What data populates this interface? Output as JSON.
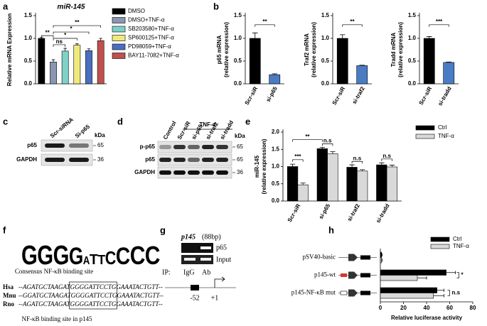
{
  "chart_data": [
    {
      "type": "bar",
      "panel": "a",
      "title": "miR-145",
      "ylabel": [
        "Relative mRNA Expression"
      ],
      "categories": [
        "DMSO",
        "DMSO+TNF-α",
        "SB203580+TNF-α",
        "SP600125+TNF-α",
        "PD98059+TNF-α",
        "BAY11-7082+TNF-α"
      ],
      "values": [
        1.0,
        0.48,
        0.72,
        0.85,
        0.73,
        0.95
      ],
      "errors": [
        0.02,
        0.05,
        0.06,
        0.03,
        0.04,
        0.05
      ],
      "colors": [
        "#000000",
        "#8a97b3",
        "#7fd1c6",
        "#f0ea7c",
        "#4a6ec0",
        "#c0504d"
      ],
      "ylim": [
        0,
        1.5
      ],
      "yticks": [
        {
          "value": 0,
          "label": "0.0"
        },
        0.5,
        {
          "value": 1,
          "label": "1.0"
        },
        1.5
      ],
      "annotations": [
        "**",
        "ns",
        "*",
        "*",
        "**"
      ],
      "legend": "right"
    },
    {
      "type": "bar",
      "panel": "b",
      "ylabel": [
        "p65 mRNA",
        "(relative expression)"
      ],
      "categories": [
        "Scr-siR",
        "si-p65"
      ],
      "values": [
        1.0,
        0.2
      ],
      "errors": [
        0.12,
        0.02
      ],
      "colors": [
        "#000000",
        "#4a7cc4"
      ],
      "ylim": [
        0,
        1.5
      ],
      "yticks": [
        {
          "value": 0,
          "label": "0.0"
        },
        0.5,
        {
          "value": 1,
          "label": "1.0"
        },
        1.5
      ],
      "annotations": [
        "**"
      ]
    },
    {
      "type": "bar",
      "ylabel": [
        "Traf2 mRNA",
        "(relative expression)"
      ],
      "categories": [
        "Scr-siR",
        "si-traf2"
      ],
      "values": [
        1.0,
        0.4
      ],
      "errors": [
        0.08,
        0.01
      ],
      "colors": [
        "#000000",
        "#4a7cc4"
      ],
      "ylim": [
        0,
        1.5
      ],
      "yticks": [
        {
          "value": 0,
          "label": "0.0"
        },
        0.5,
        {
          "value": 1,
          "label": "1.0"
        },
        1.5
      ],
      "annotations": [
        "**"
      ]
    },
    {
      "type": "bar",
      "ylabel": [
        "Tradd mRNA",
        "(relative expression)"
      ],
      "categories": [
        "Scr-siR",
        "si-tradd"
      ],
      "values": [
        1.0,
        0.47
      ],
      "errors": [
        0.04,
        0.01
      ],
      "colors": [
        "#000000",
        "#4a7cc4"
      ],
      "ylim": [
        0,
        1.5
      ],
      "yticks": [
        {
          "value": 0,
          "label": "0.0"
        },
        0.5,
        {
          "value": 1,
          "label": "1.0"
        },
        1.5
      ],
      "annotations": [
        "***"
      ]
    },
    {
      "type": "bar",
      "panel": "e",
      "ylabel": [
        "miR-145",
        "(relative expression)"
      ],
      "categories": [
        "Scr-siR",
        "si-p65",
        "si-traf2",
        "si-tradd"
      ],
      "series": [
        {
          "name": "Ctrl",
          "color": "#000000",
          "values": [
            1.0,
            1.52,
            0.98,
            1.05
          ],
          "errors": [
            0.07,
            0.04,
            0.07,
            0.06
          ]
        },
        {
          "name": "TNF-α",
          "color": "#d9d9d9",
          "values": [
            0.47,
            1.37,
            0.87,
            0.99
          ],
          "errors": [
            0.05,
            0.06,
            0.04,
            0.05
          ]
        }
      ],
      "ylim": [
        0,
        2
      ],
      "yticks": [
        {
          "value": 0,
          "label": "0.0"
        },
        0.5,
        {
          "value": 1,
          "label": "1.0"
        },
        1.5,
        {
          "value": 2,
          "label": "2.0"
        }
      ],
      "annotations": [
        "***",
        "**",
        "n.s",
        "n.s",
        "n.s"
      ],
      "legend": "top-right"
    },
    {
      "type": "barh",
      "panel": "h",
      "xlabel": "Relative luciferase activity",
      "categories": [
        "pSV40-basic",
        "p145-wt",
        "p145-NF-κB mut"
      ],
      "series": [
        {
          "name": "Ctrl",
          "color": "#000000",
          "values": [
            1,
            57,
            49
          ],
          "errors": [
            0.5,
            8,
            6
          ]
        },
        {
          "name": "TNF-α",
          "color": "#d9d9d9",
          "values": [
            1,
            32,
            46
          ],
          "errors": [
            0.5,
            8,
            9
          ]
        }
      ],
      "xlim": [
        0,
        80
      ],
      "xticks": [
        0,
        20,
        40,
        60,
        80
      ],
      "annotations": [
        "*",
        "n.s"
      ],
      "legend": "top-right"
    }
  ],
  "panel_c": {
    "panel": "c",
    "lanes": [
      "Scr-siRNA",
      "Si-p65"
    ],
    "rows": [
      "p65",
      "GAPDH"
    ],
    "unit": "kDa",
    "markers": [
      "65",
      "36"
    ]
  },
  "panel_d": {
    "panel": "d",
    "treatment": "TNF-α",
    "lanes": [
      "Control",
      "Scr-siR",
      "si-p65",
      "si-traf2",
      "si-tradd"
    ],
    "rows": [
      "p-p65",
      "p65",
      "GAPDH"
    ],
    "unit": "kDa",
    "markers": [
      "65",
      "65",
      "36"
    ]
  },
  "panel_f": {
    "panel": "f",
    "logo": [
      "G",
      "G",
      "G",
      "G",
      "A",
      "T",
      "T",
      "C",
      "C",
      "C",
      "C"
    ],
    "logo_caption": "Consensus NF-κB binding site",
    "species": [
      {
        "name": "Hsa",
        "left": "--AGATGCTAAGAT",
        "site": "GGGGATTCCTG",
        "right": "GAAATACTGTT--"
      },
      {
        "name": "Mnu",
        "left": "--GGATGCTAAGAT",
        "site": "GGGGATTCCTG",
        "right": "GAAATACTGTT--"
      },
      {
        "name": "Rno",
        "left": "--AGATGCTAAGAT",
        "site": "GGGGATTCCTG",
        "right": "GAAATACTGTT--"
      }
    ],
    "caption": "NF-κB binding site in p145"
  },
  "panel_g": {
    "panel": "g",
    "gene": "p145",
    "size": "(88bp)",
    "rows": [
      "p65",
      "Input"
    ],
    "ip": "IP:",
    "lanes": [
      "IgG",
      "Ab"
    ],
    "positions": [
      "-52",
      "+1"
    ]
  }
}
